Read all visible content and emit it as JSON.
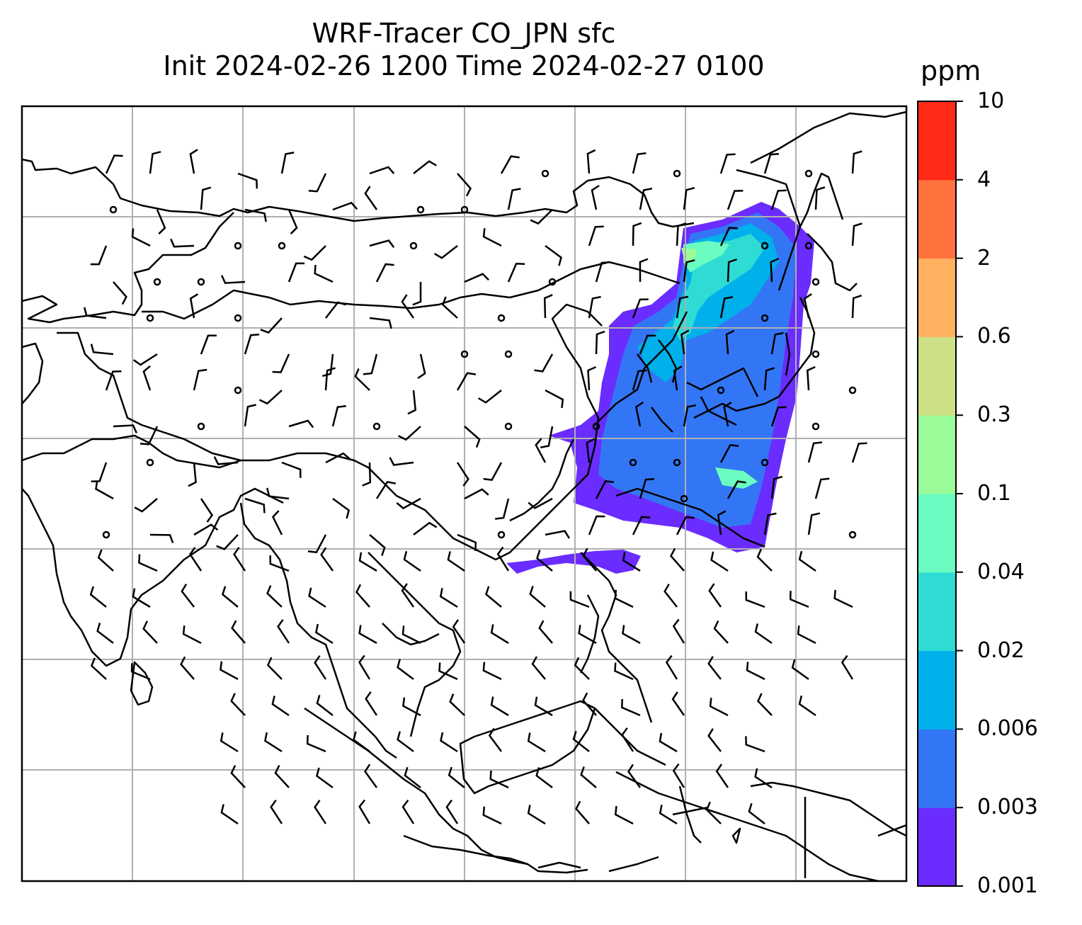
{
  "title": {
    "line1": "WRF-Tracer CO_JPN sfc",
    "line2": "Init 2024-02-26 1200 Time 2024-02-27 0100"
  },
  "colorbar": {
    "unit": "ppm",
    "levels": [
      "0.001",
      "0.003",
      "0.006",
      "0.02",
      "0.04",
      "0.1",
      "0.3",
      "0.6",
      "2",
      "4",
      "10"
    ],
    "colors": [
      "#6a2cff",
      "#3376f5",
      "#00b0ea",
      "#2fdcd4",
      "#6afcc0",
      "#9afc98",
      "#cde085",
      "#ffb160",
      "#ff723d",
      "#ff2a17"
    ]
  },
  "map": {
    "type": "filled-contour map with wind barbs",
    "variable": "CO tracer concentration (surface)",
    "basemap": "coastlines and country borders, East / South-East Asia",
    "gridlines": true,
    "overlay": "wind barbs and calm-wind circles"
  }
}
